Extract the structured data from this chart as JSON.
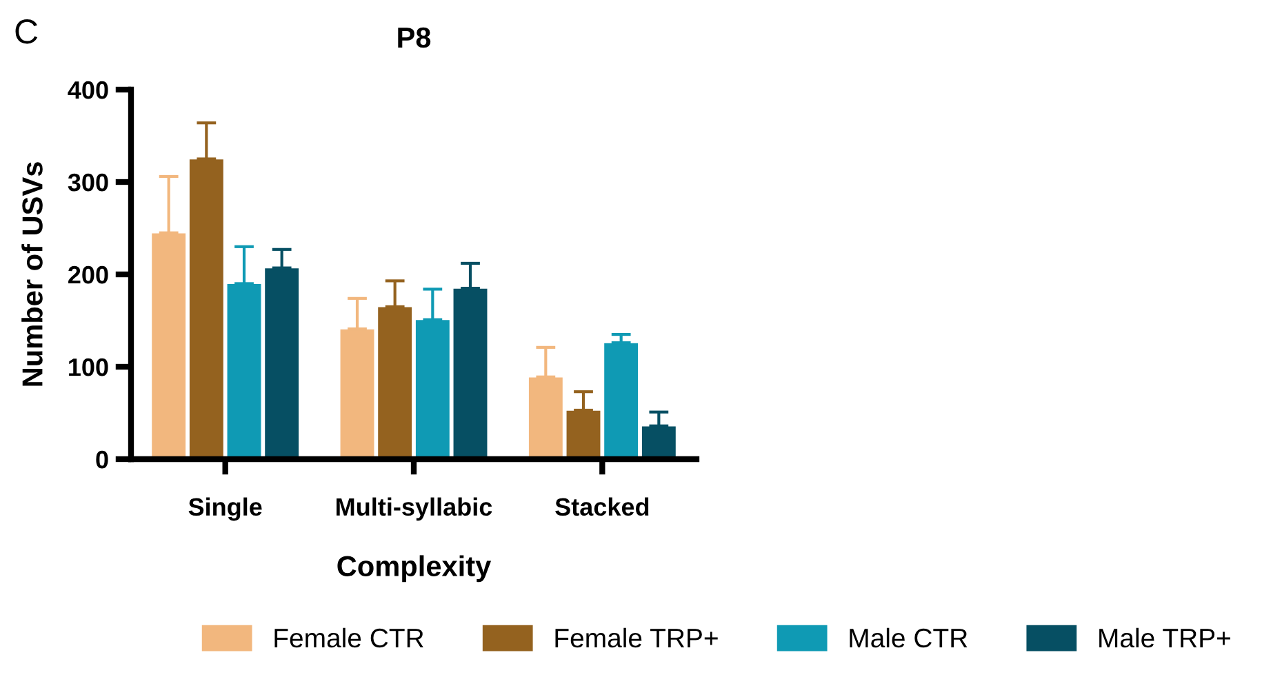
{
  "chart_data": {
    "type": "bar",
    "title": "P8",
    "xlabel": "Complexity",
    "ylabel": "Number of USVs",
    "annotations": [
      "C"
    ],
    "categories": [
      "Single",
      "Multi-syllabic",
      "Stacked"
    ],
    "series": [
      {
        "name": "Female CTR",
        "color": "#f2b77e",
        "values": [
          245,
          141,
          89
        ],
        "errors": [
          [
            245,
            306
          ],
          [
            141,
            174
          ],
          [
            89,
            121
          ]
        ]
      },
      {
        "name": "Female TRP+",
        "color": "#94621f",
        "values": [
          325,
          165,
          53
        ],
        "errors": [
          [
            325,
            364
          ],
          [
            165,
            193
          ],
          [
            53,
            73
          ]
        ]
      },
      {
        "name": "Male CTR",
        "color": "#0f9ab4",
        "values": [
          190,
          151,
          126
        ],
        "errors": [
          [
            190,
            230
          ],
          [
            151,
            184
          ],
          [
            126,
            135
          ]
        ]
      },
      {
        "name": "Male TRP+",
        "color": "#064f63",
        "values": [
          207,
          185,
          36
        ],
        "errors": [
          [
            207,
            227
          ],
          [
            185,
            212
          ],
          [
            36,
            51
          ]
        ]
      }
    ],
    "ylim": [
      0,
      400
    ],
    "yticks": [
      0,
      100,
      200,
      300,
      400
    ],
    "grid": false,
    "legend": "bottom"
  }
}
